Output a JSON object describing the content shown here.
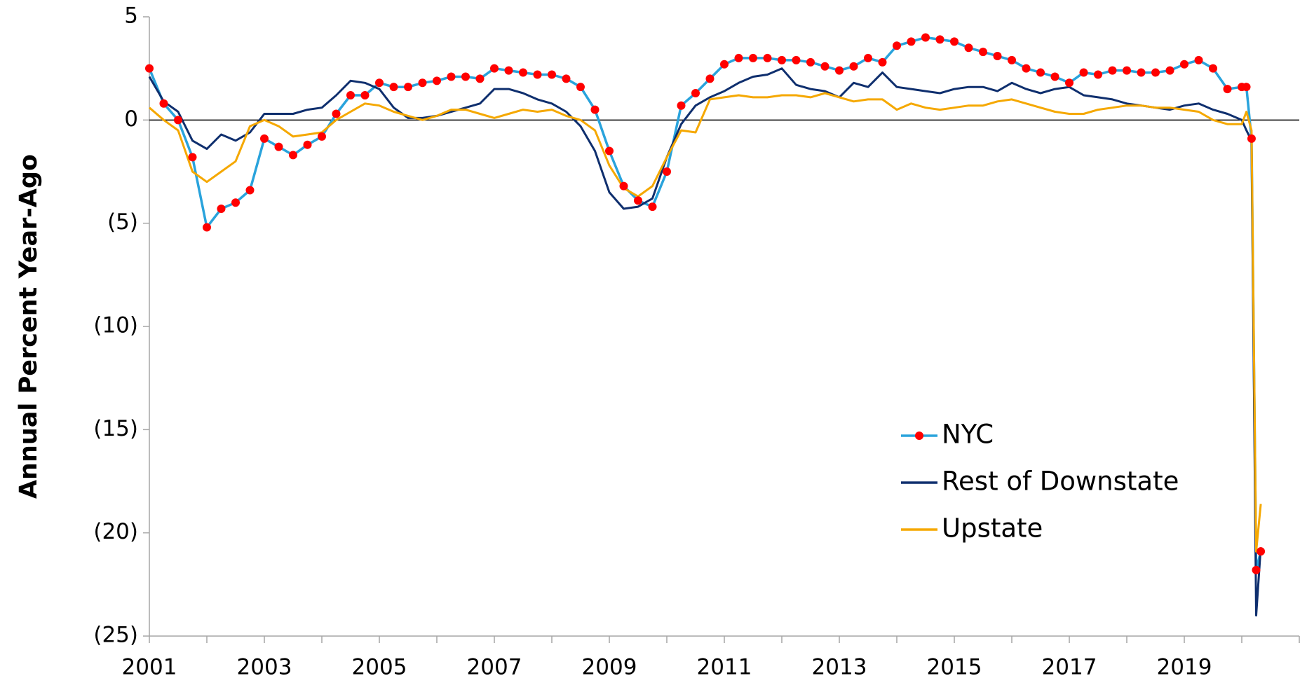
{
  "chart_data": {
    "type": "line",
    "ylabel": "Annual Percent Year-Ago",
    "xlim": [
      2001,
      2021
    ],
    "xticks": [
      2001,
      2003,
      2005,
      2007,
      2009,
      2011,
      2013,
      2015,
      2017,
      2019
    ],
    "xminorticks": [
      2002,
      2004,
      2006,
      2008,
      2010,
      2012,
      2014,
      2016,
      2018,
      2020,
      2021
    ],
    "ylim": [
      -25,
      5
    ],
    "yticks": [
      {
        "value": -25,
        "label": "(25)"
      },
      {
        "value": -20,
        "label": "(20)"
      },
      {
        "value": -15,
        "label": "(15)"
      },
      {
        "value": -10,
        "label": "(10)"
      },
      {
        "value": -5,
        "label": "(5)"
      },
      0,
      5
    ],
    "zero_line": true,
    "legend": "center right",
    "x": [
      2001,
      2001.25,
      2001.5,
      2001.75,
      2002,
      2002.25,
      2002.5,
      2002.75,
      2003,
      2003.25,
      2003.5,
      2003.75,
      2004,
      2004.25,
      2004.5,
      2004.75,
      2005,
      2005.25,
      2005.5,
      2005.75,
      2006,
      2006.25,
      2006.5,
      2006.75,
      2007,
      2007.25,
      2007.5,
      2007.75,
      2008,
      2008.25,
      2008.5,
      2008.75,
      2009,
      2009.25,
      2009.5,
      2009.75,
      2010,
      2010.25,
      2010.5,
      2010.75,
      2011,
      2011.25,
      2011.5,
      2011.75,
      2012,
      2012.25,
      2012.5,
      2012.75,
      2013,
      2013.25,
      2013.5,
      2013.75,
      2014,
      2014.25,
      2014.5,
      2014.75,
      2015,
      2015.25,
      2015.5,
      2015.75,
      2016,
      2016.25,
      2016.5,
      2016.75,
      2017,
      2017.25,
      2017.5,
      2017.75,
      2018,
      2018.25,
      2018.5,
      2018.75,
      2019,
      2019.25,
      2019.5,
      2019.75,
      2020,
      2020.08,
      2020.17,
      2020.25,
      2020.33
    ],
    "series": [
      {
        "name": "NYC",
        "color": "#29a3dc",
        "marker_color": "#ff0000",
        "values": [
          2.5,
          0.8,
          0,
          -1.8,
          -5.2,
          -4.3,
          -4.0,
          -3.4,
          -0.9,
          -1.3,
          -1.7,
          -1.2,
          -0.8,
          0.3,
          1.2,
          1.2,
          1.8,
          1.6,
          1.6,
          1.8,
          1.9,
          2.1,
          2.1,
          2.0,
          2.5,
          2.4,
          2.3,
          2.2,
          2.2,
          2.0,
          1.6,
          0.5,
          -1.5,
          -3.2,
          -3.9,
          -4.2,
          -2.5,
          0.7,
          1.3,
          2.0,
          2.7,
          3,
          3,
          3,
          2.9,
          2.9,
          2.8,
          2.6,
          2.4,
          2.6,
          3.0,
          2.8,
          3.6,
          3.8,
          4.0,
          3.9,
          3.8,
          3.5,
          3.3,
          3.1,
          2.9,
          2.5,
          2.3,
          2.1,
          1.8,
          2.3,
          2.2,
          2.4,
          2.4,
          2.3,
          2.3,
          2.4,
          2.7,
          2.9,
          2.5,
          1.5,
          1.6,
          1.6,
          -0.9,
          -21.8,
          -20.9
        ]
      },
      {
        "name": "Rest of Downstate",
        "color": "#0f2f6e",
        "values": [
          2.1,
          0.9,
          0.4,
          -1.0,
          -1.4,
          -0.7,
          -1.0,
          -0.6,
          0.3,
          0.3,
          0.3,
          0.5,
          0.6,
          1.2,
          1.9,
          1.8,
          1.5,
          0.6,
          0.1,
          0.1,
          0.2,
          0.4,
          0.6,
          0.8,
          1.5,
          1.5,
          1.3,
          1.0,
          0.8,
          0.4,
          -0.3,
          -1.5,
          -3.5,
          -4.3,
          -4.2,
          -3.8,
          -1.8,
          -0.2,
          0.7,
          1.1,
          1.4,
          1.8,
          2.1,
          2.2,
          2.5,
          1.7,
          1.5,
          1.4,
          1.1,
          1.8,
          1.6,
          2.3,
          1.6,
          1.5,
          1.4,
          1.3,
          1.5,
          1.6,
          1.6,
          1.4,
          1.8,
          1.5,
          1.3,
          1.5,
          1.6,
          1.2,
          1.1,
          1.0,
          0.8,
          0.7,
          0.6,
          0.5,
          0.7,
          0.8,
          0.5,
          0.3,
          0.0,
          -0.5,
          -1.0,
          -24.0,
          -20.7
        ]
      },
      {
        "name": "Upstate",
        "color": "#f5a800",
        "values": [
          0.6,
          0,
          -0.5,
          -2.5,
          -3.0,
          -2.5,
          -2.0,
          -0.3,
          0,
          -0.3,
          -0.8,
          -0.7,
          -0.6,
          0,
          0.4,
          0.8,
          0.7,
          0.4,
          0.2,
          0,
          0.2,
          0.5,
          0.5,
          0.3,
          0.1,
          0.3,
          0.5,
          0.4,
          0.5,
          0.2,
          0,
          -0.5,
          -2.2,
          -3.3,
          -3.7,
          -3.2,
          -1.8,
          -0.5,
          -0.6,
          1.0,
          1.1,
          1.2,
          1.1,
          1.1,
          1.2,
          1.2,
          1.1,
          1.3,
          1.1,
          0.9,
          1.0,
          1.0,
          0.5,
          0.8,
          0.6,
          0.5,
          0.6,
          0.7,
          0.7,
          0.9,
          1.0,
          0.8,
          0.6,
          0.4,
          0.3,
          0.3,
          0.5,
          0.6,
          0.7,
          0.7,
          0.6,
          0.6,
          0.5,
          0.4,
          0,
          -0.2,
          -0.2,
          0.4,
          -0.5,
          -20.9,
          -18.6
        ]
      }
    ]
  }
}
